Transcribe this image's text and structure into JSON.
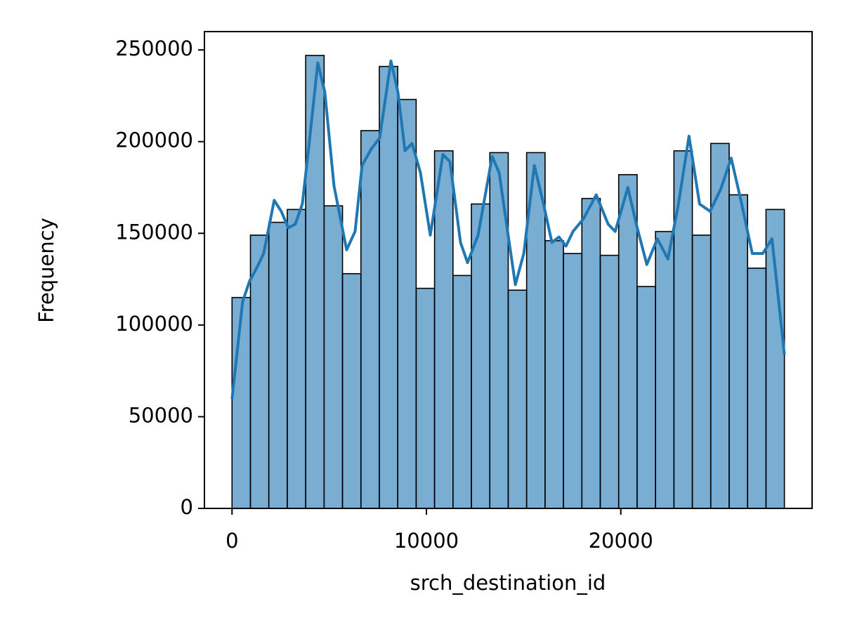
{
  "chart_data": {
    "type": "histogram",
    "xlabel": "srch_destination_id",
    "ylabel": "Frequency",
    "bins": [
      0,
      947.2,
      1894.4,
      2841.6,
      3788.8,
      4736,
      5683.2,
      6630.4,
      7577.6,
      8524.8,
      9472,
      10419.2,
      11366.4,
      12313.6,
      13260.8,
      14208,
      15155.2,
      16102.4,
      17049.6,
      17996.8,
      18944,
      19891.2,
      20838.4,
      21785.6,
      22732.8,
      23680,
      24627.2,
      25574.4,
      26521.6,
      27468.8,
      28416
    ],
    "values": [
      115000,
      149000,
      156000,
      163000,
      247000,
      165000,
      128000,
      206000,
      241000,
      223000,
      120000,
      195000,
      127000,
      166000,
      194000,
      119000,
      194000,
      146000,
      139000,
      169000,
      138000,
      182000,
      121000,
      151000,
      195000,
      149000,
      199000,
      171000,
      131000,
      163000
    ],
    "color": "#1f77b4",
    "kde": {
      "x": [
        0,
        542,
        904,
        1266,
        1627,
        2170,
        2532,
        2893,
        3255,
        3617,
        3978,
        4412,
        4774,
        5244,
        5895,
        6329,
        6691,
        7161,
        7595,
        8174,
        8535,
        8897,
        9259,
        9693,
        10199,
        10850,
        11212,
        11754,
        12116,
        12658,
        13382,
        13743,
        14177,
        14575,
        15009,
        15552,
        16022,
        16456,
        16817,
        17179,
        17541,
        18083,
        18734,
        19349,
        19711,
        20362,
        20796,
        21338,
        21881,
        22423,
        22966,
        23508,
        24051,
        24593,
        25136,
        25678,
        26220,
        26763,
        27306,
        27776,
        28416
      ],
      "y": [
        59700,
        112600,
        124000,
        131000,
        139000,
        168000,
        162000,
        153000,
        155000,
        166000,
        200000,
        243000,
        227000,
        176000,
        141000,
        151000,
        187000,
        196000,
        202000,
        244000,
        227000,
        195000,
        199000,
        183000,
        149000,
        193000,
        189000,
        145000,
        134000,
        149000,
        192000,
        183000,
        151000,
        122000,
        139000,
        187000,
        166000,
        145000,
        148000,
        143000,
        151000,
        158000,
        171000,
        155000,
        151000,
        175000,
        155000,
        133000,
        147000,
        136000,
        166000,
        203000,
        166000,
        162000,
        174000,
        191000,
        166000,
        139000,
        139000,
        147000,
        84000
      ]
    },
    "xlim": [
      -1420,
      29840
    ],
    "ylim": [
      0,
      260000
    ],
    "xticks": [
      0,
      10000,
      20000
    ],
    "yticks": [
      0,
      50000,
      100000,
      150000,
      200000,
      250000
    ]
  }
}
